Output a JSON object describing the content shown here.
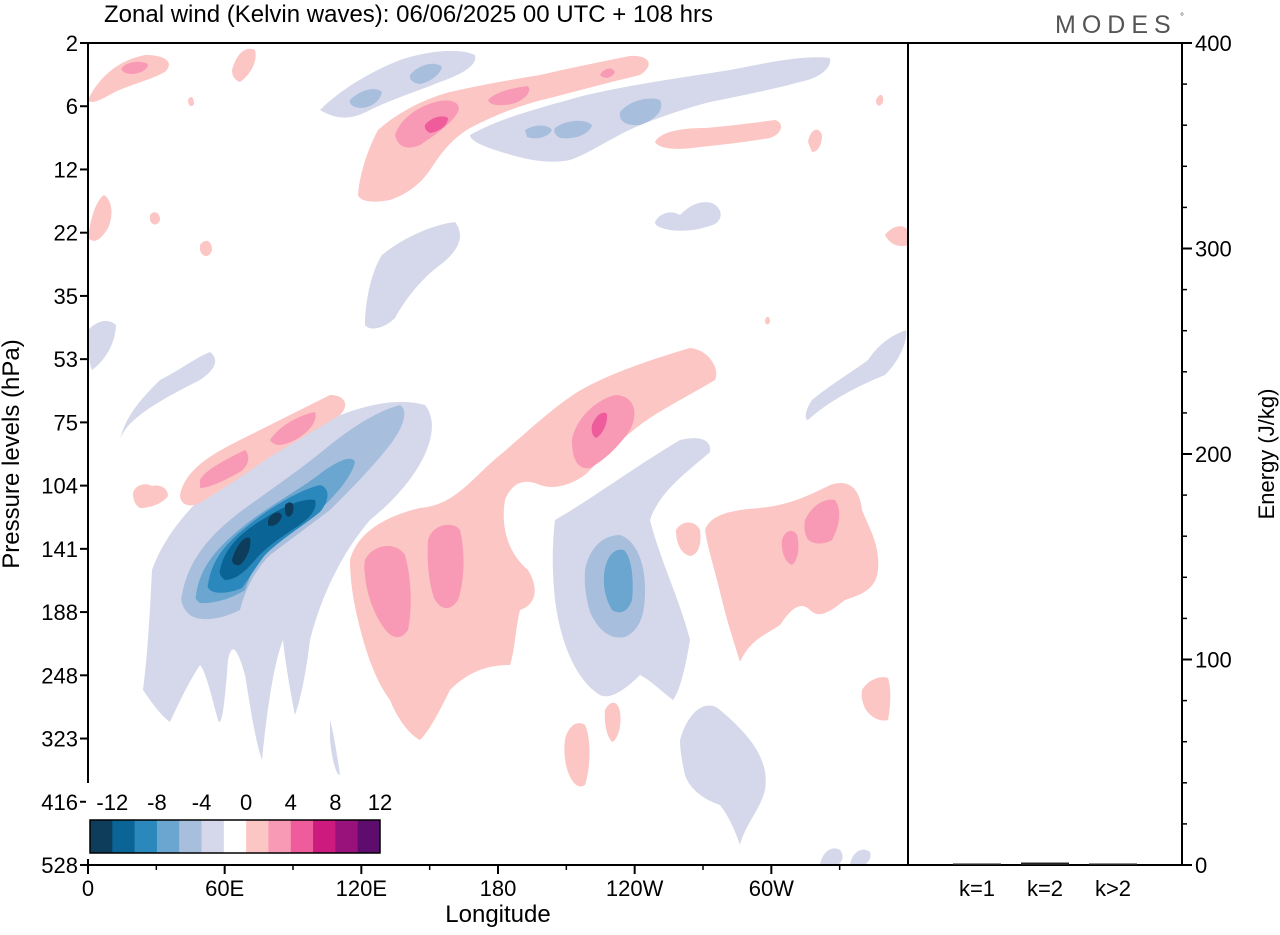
{
  "title": "Zonal wind (Kelvin waves):  06/06/2025  00 UTC  + 108 hrs",
  "brand": "MODES",
  "brand_mark": "°",
  "chart_data": [
    {
      "type": "heatmap",
      "title": "Zonal wind (Kelvin waves):  06/06/2025  00 UTC  + 108 hrs",
      "xlabel": "Longitude",
      "ylabel": "Pressure levels (hPa)",
      "x_ticks": [
        "0",
        "60E",
        "120E",
        "180",
        "120W",
        "60W"
      ],
      "x_tick_degrees": [
        0,
        60,
        120,
        180,
        240,
        300
      ],
      "x_range_degrees": [
        0,
        360
      ],
      "y_ticks": [
        "2",
        "6",
        "12",
        "22",
        "35",
        "53",
        "75",
        "104",
        "141",
        "188",
        "248",
        "323",
        "416",
        "528"
      ],
      "y_axis_inverted": true,
      "colorbar": {
        "labels": [
          "-12",
          "-8",
          "-4",
          "0",
          "4",
          "8",
          "12"
        ],
        "colors": [
          "#0e3d5c",
          "#0a6496",
          "#2a88bd",
          "#6aa6cf",
          "#a8bedd",
          "#d5d8ea",
          "#ffffff",
          "#fbc6c3",
          "#f89ab5",
          "#ee5c9c",
          "#cc1a7f",
          "#99117a",
          "#5e0d6e"
        ]
      },
      "regions": [
        {
          "lon": 72,
          "lev": 135,
          "value": -12
        },
        {
          "lon": 85,
          "lev": 125,
          "value": -8
        },
        {
          "lon": 70,
          "lev": 175,
          "value": -4
        },
        {
          "lon": 235,
          "lev": 155,
          "value": -6
        },
        {
          "lon": 80,
          "lev": 92,
          "value": 6
        },
        {
          "lon": 155,
          "lev": 170,
          "value": 6
        },
        {
          "lon": 226,
          "lev": 85,
          "value": 8
        },
        {
          "lon": 315,
          "lev": 130,
          "value": 6
        },
        {
          "lon": 152,
          "lev": 7,
          "value": 8
        },
        {
          "lon": 215,
          "lev": 5,
          "value": 4
        },
        {
          "lon": 250,
          "lev": 4,
          "value": -4
        },
        {
          "lon": 140,
          "lev": 27,
          "value": -2
        }
      ]
    },
    {
      "type": "bar",
      "categories": [
        "k=1",
        "k=2",
        "k>2"
      ],
      "values": [
        0.5,
        1.2,
        0.6
      ],
      "ylabel": "Energy (J/kg)",
      "ylim": [
        0,
        400
      ],
      "y_ticks": [
        "0",
        "100",
        "200",
        "300",
        "400"
      ]
    }
  ]
}
